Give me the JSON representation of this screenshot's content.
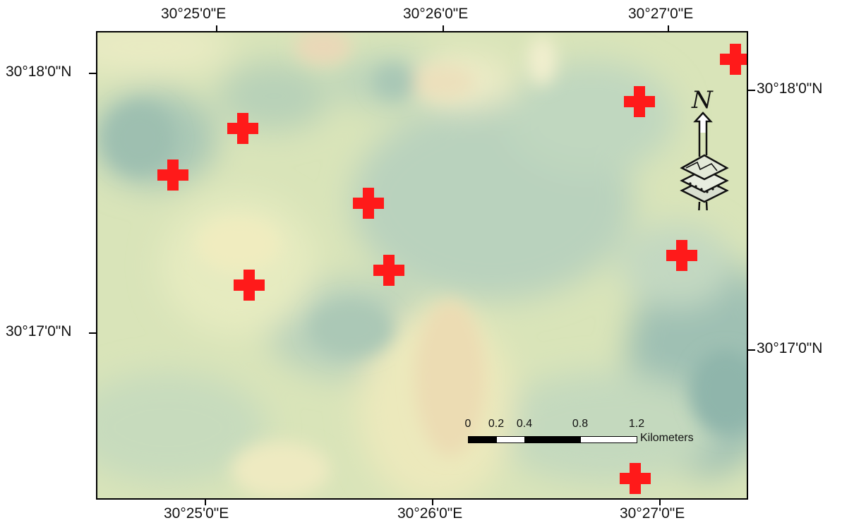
{
  "map": {
    "lon_labels": [
      "30°25'0\"E",
      "30°26'0\"E",
      "30°27'0\"E"
    ],
    "lat_labels": [
      "30°18'0\"N",
      "30°17'0\"N"
    ],
    "markers": [
      {
        "id": "marker-1"
      },
      {
        "id": "marker-2"
      },
      {
        "id": "marker-3"
      },
      {
        "id": "marker-4"
      },
      {
        "id": "marker-5"
      },
      {
        "id": "marker-6"
      },
      {
        "id": "marker-7"
      },
      {
        "id": "marker-8"
      },
      {
        "id": "marker-9"
      },
      {
        "id": "marker-10"
      }
    ],
    "marker_color": "#ff1a1a",
    "north_arrow": {
      "label": "N",
      "icon": "north-arrow-icon"
    },
    "scale_bar": {
      "labels": [
        "0",
        "0.2",
        "0.4",
        "0.8",
        "1.2"
      ],
      "unit": "Kilometers"
    }
  }
}
